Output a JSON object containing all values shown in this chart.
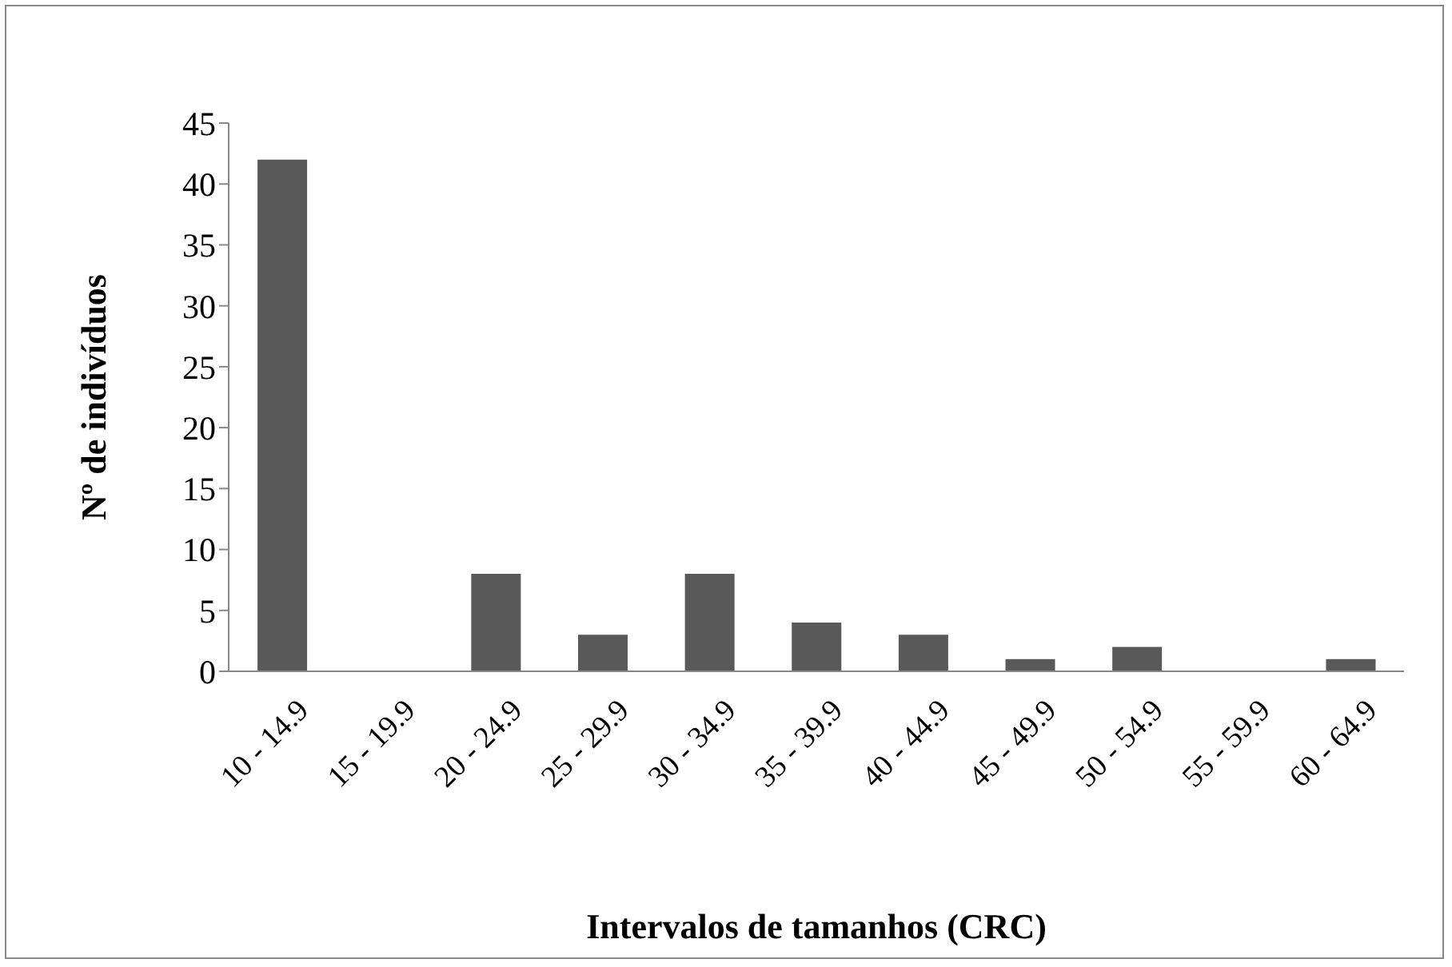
{
  "chart_data": {
    "type": "bar",
    "xlabel": "Intervalos de tamanhos (CRC)",
    "ylabel": "Nº de indivíduos",
    "categories": [
      "10 - 14.9",
      "15 - 19.9",
      "20 - 24.9",
      "25 - 29.9",
      "30 - 34.9",
      "35 - 39.9",
      "40 - 44.9",
      "45 - 49.9",
      "50 - 54.9",
      "55 - 59.9",
      "60 - 64.9"
    ],
    "values": [
      42,
      0,
      8,
      3,
      8,
      4,
      3,
      1,
      2,
      0,
      1
    ],
    "color": "#595959",
    "ylim": [
      0,
      45
    ],
    "yticks": [
      0,
      5,
      10,
      15,
      20,
      25,
      30,
      35,
      40,
      45
    ],
    "grid": false,
    "legend": false
  }
}
